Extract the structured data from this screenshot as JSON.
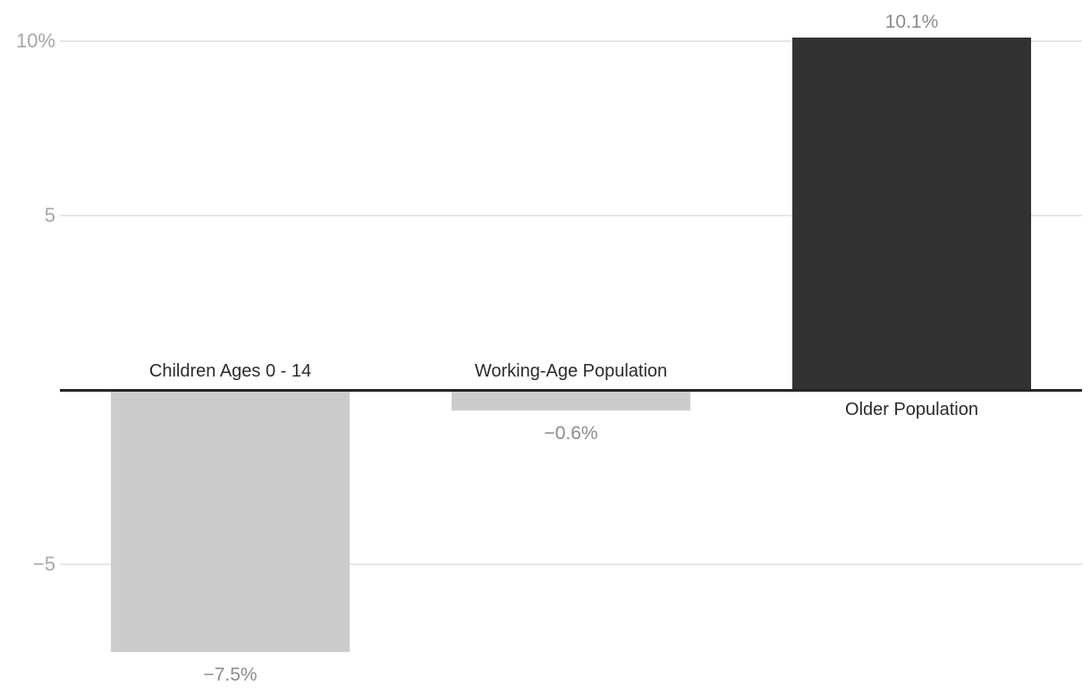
{
  "chart_data": {
    "type": "bar",
    "categories": [
      "Children Ages 0 - 14",
      "Working-Age Population",
      "Older Population"
    ],
    "values": [
      -7.5,
      -0.6,
      10.1
    ],
    "value_labels": [
      "−7.5%",
      "−0.6%",
      "10.1%"
    ],
    "bar_colors": [
      "#cccccc",
      "#cccccc",
      "#323232"
    ],
    "y_ticks": [
      {
        "value": 10,
        "label": "10%"
      },
      {
        "value": 5,
        "label": "5"
      },
      {
        "value": -5,
        "label": "−5"
      }
    ],
    "baseline_value": 0,
    "ylim": [
      -8.7,
      11.2
    ],
    "title": "",
    "xlabel": "",
    "ylabel": "",
    "grid": "horizontal",
    "legend": "none"
  },
  "colors": {
    "background": "#ffffff",
    "gridline": "#e6e6e6",
    "zero_line": "#262626",
    "tick_label": "#a6a6a6",
    "value_label": "#8c8c8c",
    "category_label": "#2b2b2b",
    "bar_light": "#cccccc",
    "bar_dark": "#323232"
  }
}
